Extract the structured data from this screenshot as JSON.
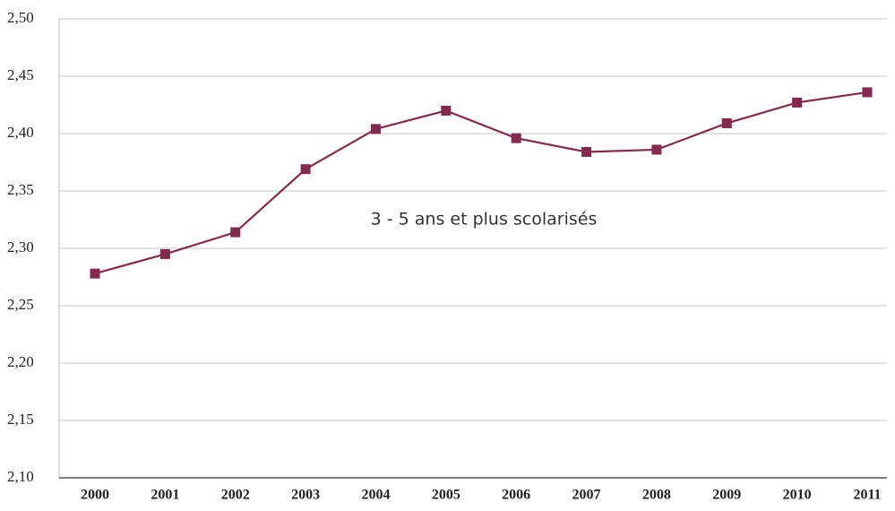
{
  "chart_data": {
    "type": "line",
    "categories": [
      "2000",
      "2001",
      "2002",
      "2003",
      "2004",
      "2005",
      "2006",
      "2007",
      "2008",
      "2009",
      "2010",
      "2011"
    ],
    "series": [
      {
        "name": "3 - 5 ans et plus scolarisés",
        "color": "#86294f",
        "values": [
          2.278,
          2.295,
          2.314,
          2.369,
          2.404,
          2.42,
          2.396,
          2.384,
          2.386,
          2.409,
          2.427,
          2.436
        ]
      }
    ],
    "ylim": [
      2.1,
      2.5
    ],
    "yticks": [
      {
        "value": 2.1,
        "label": "2,10"
      },
      {
        "value": 2.15,
        "label": "2,15"
      },
      {
        "value": 2.2,
        "label": "2,20"
      },
      {
        "value": 2.25,
        "label": "2,25"
      },
      {
        "value": 2.3,
        "label": "2,30"
      },
      {
        "value": 2.35,
        "label": "2,35"
      },
      {
        "value": 2.4,
        "label": "2,40"
      },
      {
        "value": 2.45,
        "label": "2,45"
      },
      {
        "value": 2.5,
        "label": "2,50"
      }
    ],
    "grid": true
  }
}
